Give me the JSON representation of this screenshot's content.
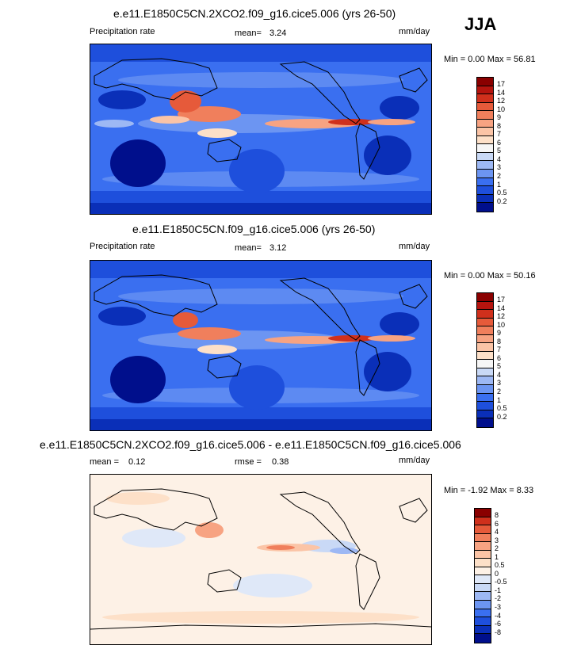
{
  "season": "JJA",
  "colors": {
    "precip": [
      "#000f8c",
      "#0a2fb8",
      "#1e4fdc",
      "#3a6ff0",
      "#6c95f2",
      "#9db8f4",
      "#c9d9f6",
      "#f6f6f6",
      "#fde0c8",
      "#fbc4a6",
      "#f7a382",
      "#f07f5c",
      "#e65a3a",
      "#d0301c",
      "#b5140e",
      "#8a0000"
    ],
    "diff": [
      "#000f8c",
      "#0a2fb8",
      "#1e4fdc",
      "#3a6ff0",
      "#6c95f2",
      "#9db8f4",
      "#c9d9f6",
      "#dfe8f8",
      "#fdf1e6",
      "#fde0c8",
      "#fbc4a6",
      "#f7a382",
      "#f07f5c",
      "#e65a3a",
      "#d0301c",
      "#8a0000"
    ]
  },
  "precip_ticks": [
    "17",
    "14",
    "12",
    "10",
    "9",
    "8",
    "7",
    "6",
    "5",
    "4",
    "3",
    "2",
    "1",
    "0.5",
    "0.2"
  ],
  "diff_ticks": [
    "8",
    "6",
    "4",
    "3",
    "2",
    "1",
    "0.5",
    "0",
    "-0.5",
    "-1",
    "-2",
    "-3",
    "-4",
    "-6",
    "-8"
  ],
  "panel1": {
    "title": "e.e11.E1850C5CN.2XCO2.f09_g16.cice5.006 (yrs 26-50)",
    "left": "Precipitation rate",
    "mean_label": "mean=",
    "mean_value": "3.24",
    "units": "mm/day",
    "minmax": "Min =   0.00 Max =  56.81"
  },
  "panel2": {
    "title": "e.e11.E1850C5CN.f09_g16.cice5.006 (yrs 26-50)",
    "left": "Precipitation rate",
    "mean_label": "mean=",
    "mean_value": "3.12",
    "units": "mm/day",
    "minmax": "Min =   0.00 Max =  50.16"
  },
  "panel3": {
    "title": "e.e11.E1850C5CN.2XCO2.f09_g16.cice5.006 - e.e11.E1850C5CN.f09_g16.cice5.006",
    "mean_label": "mean =",
    "mean_value": "0.12",
    "rmse_label": "rmse =",
    "rmse_value": "0.38",
    "units": "mm/day",
    "minmax": "Min =  -1.92 Max =   8.33"
  }
}
